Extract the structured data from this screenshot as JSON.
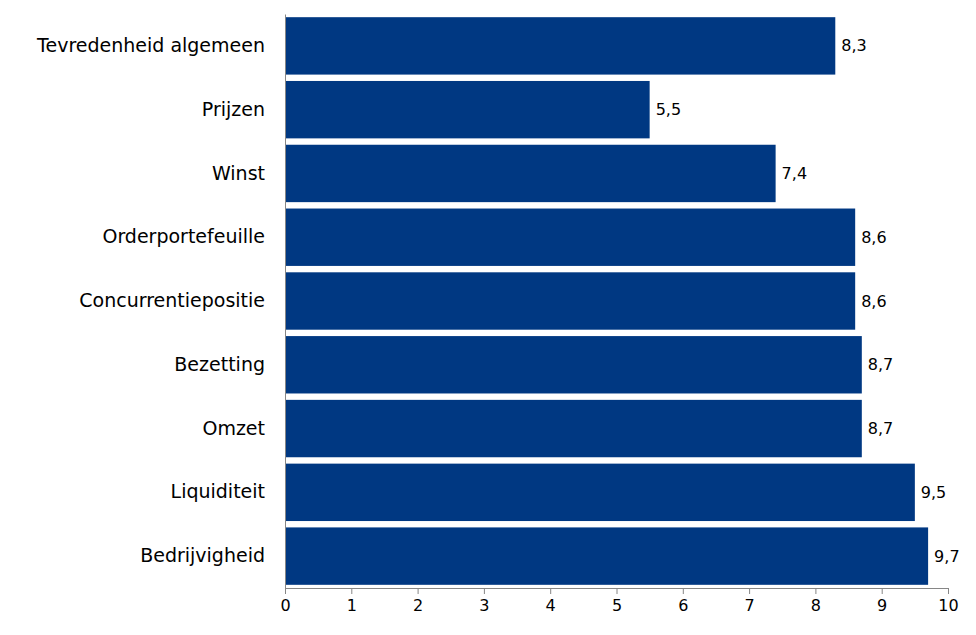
{
  "chart_data": {
    "type": "bar",
    "orientation": "horizontal",
    "categories": [
      "Tevredenheid algemeen",
      "Prijzen",
      "Winst",
      "Orderportefeuille",
      "Concurrentiepositie",
      "Bezetting",
      "Omzet",
      "Liquiditeit",
      "Bedrijvigheid"
    ],
    "values": [
      8.3,
      5.5,
      7.4,
      8.6,
      8.6,
      8.7,
      8.7,
      9.5,
      9.7
    ],
    "value_labels": [
      "8,3",
      "5,5",
      "7,4",
      "8,6",
      "8,6",
      "8,7",
      "8,7",
      "9,5",
      "9,7"
    ],
    "color": "#003882",
    "xlim": [
      0,
      10
    ],
    "xticks": [
      0,
      1,
      2,
      3,
      4,
      5,
      6,
      7,
      8,
      9,
      10
    ],
    "grid": false,
    "data_labels": true
  }
}
